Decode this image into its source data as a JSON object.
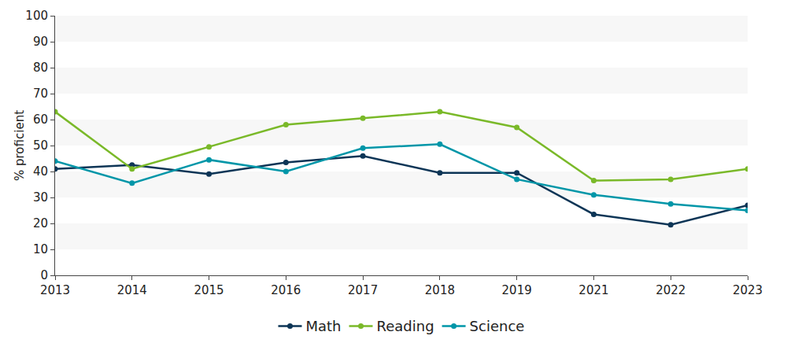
{
  "chart_data": {
    "type": "line",
    "y_label": "% proficient",
    "categories": [
      "2013",
      "2014",
      "2015",
      "2016",
      "2017",
      "2018",
      "2019",
      "2021",
      "2022",
      "2023"
    ],
    "series": [
      {
        "name": "Math",
        "color": "#0d3556",
        "values": [
          41,
          42.5,
          39,
          43.5,
          46,
          39.5,
          39.5,
          23.5,
          19.5,
          27
        ]
      },
      {
        "name": "Reading",
        "color": "#7ab929",
        "values": [
          63,
          41,
          49.5,
          58,
          60.5,
          63,
          57,
          36.5,
          37,
          41
        ]
      },
      {
        "name": "Science",
        "color": "#0096a8",
        "values": [
          44,
          35.5,
          44.5,
          40,
          49,
          50.5,
          37,
          31,
          27.5,
          25
        ]
      }
    ],
    "ylim": [
      0,
      100
    ],
    "yticks": [
      0,
      10,
      20,
      30,
      40,
      50,
      60,
      70,
      80,
      90,
      100
    ],
    "grid": true,
    "legend": "bottom",
    "marker": "circle"
  }
}
